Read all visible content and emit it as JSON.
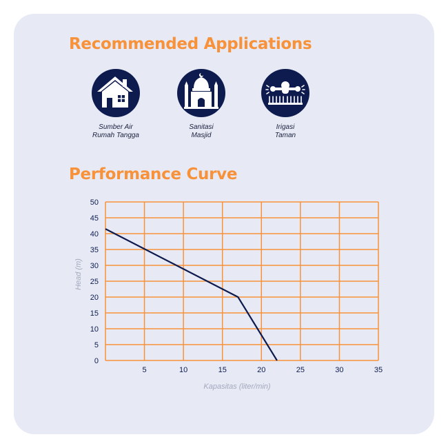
{
  "apps_title": "Recommended Applications",
  "apps": [
    {
      "icon": "house-icon",
      "line1": "Sumber Air",
      "line2": "Rumah Tangga"
    },
    {
      "icon": "mosque-icon",
      "line1": "Sanitasi",
      "line2": "Masjid"
    },
    {
      "icon": "garden-sprinkler-icon",
      "line1": "Irigasi",
      "line2": "Taman"
    }
  ],
  "perf_title": "Performance Curve",
  "colors": {
    "accent": "#f7923a",
    "navy": "#0d1b4f",
    "card": "#e7eaf5",
    "axis_label": "#a3a8bd"
  },
  "chart_data": {
    "type": "line",
    "title": "Performance Curve",
    "xlabel": "Kapasitas (liter/min)",
    "ylabel": "Head (m)",
    "xlim": [
      0,
      35
    ],
    "ylim": [
      0,
      50
    ],
    "xticks": [
      5,
      10,
      15,
      20,
      25,
      30,
      35
    ],
    "yticks": [
      0,
      5,
      10,
      15,
      20,
      25,
      30,
      35,
      40,
      45,
      50
    ],
    "grid": true,
    "series": [
      {
        "x": [
          0,
          17,
          22
        ],
        "y": [
          41.5,
          20,
          0
        ]
      }
    ]
  }
}
